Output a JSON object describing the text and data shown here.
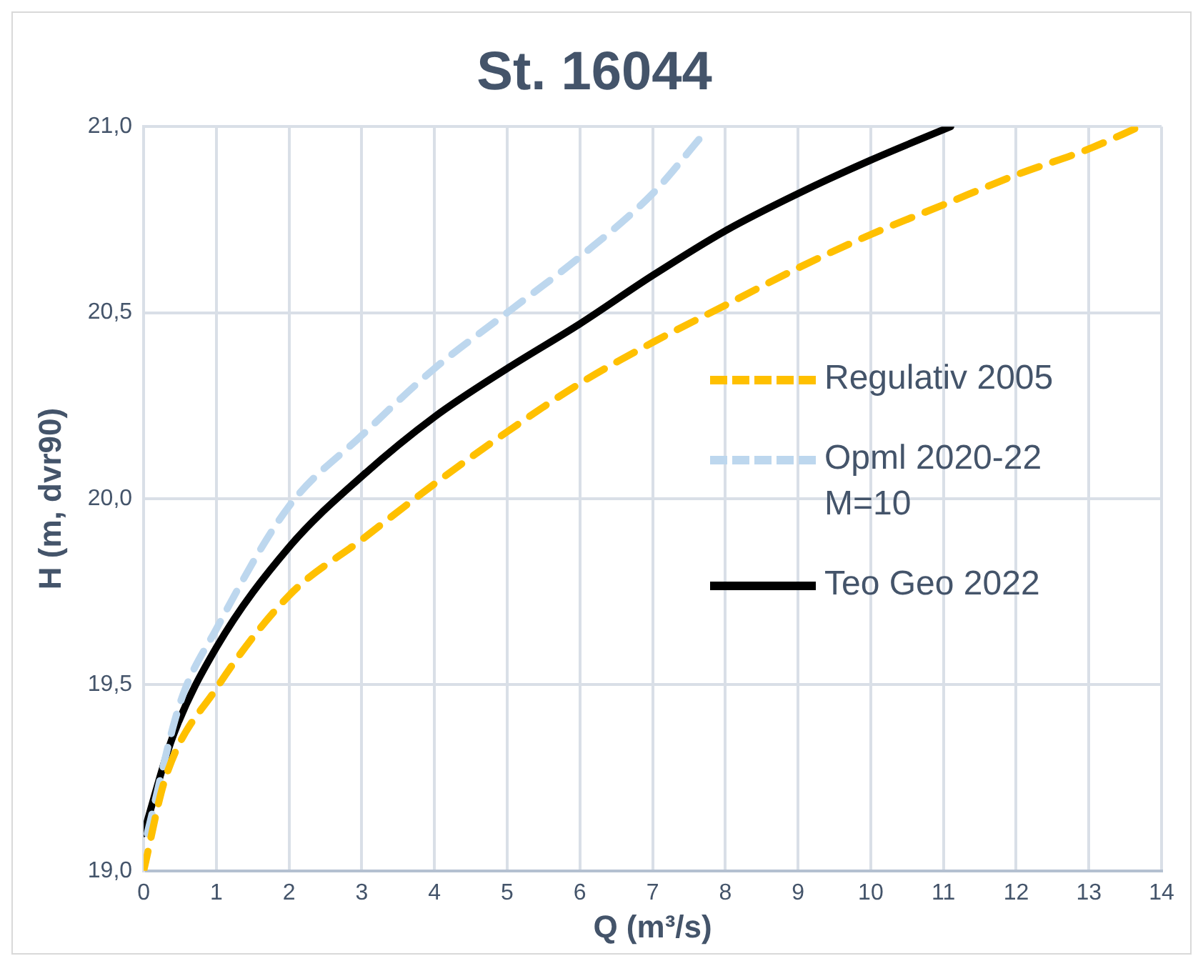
{
  "chart_data": {
    "type": "line",
    "title": "St. 16044",
    "xlabel": "Q (m³/s)",
    "ylabel": "H (m, dvr90)",
    "xlim": [
      0,
      14
    ],
    "xticks": [
      0,
      1,
      2,
      3,
      4,
      5,
      6,
      7,
      8,
      9,
      10,
      11,
      12,
      13,
      14
    ],
    "ylim": [
      19,
      21
    ],
    "yticks": [
      {
        "value": 19,
        "label": "19,0"
      },
      {
        "value": 19.5,
        "label": "19,5"
      },
      {
        "value": 20,
        "label": "20,0"
      },
      {
        "value": 20.5,
        "label": "20,5"
      },
      {
        "value": 21,
        "label": "21,0"
      }
    ],
    "grid": true,
    "legend": "right",
    "marker": "none",
    "series": [
      {
        "name": "Regulativ 2005",
        "color": "#ffc000",
        "line_style": "dashed",
        "x": [
          0,
          0.3,
          1,
          2,
          3,
          4,
          5,
          6,
          7,
          8,
          9,
          10,
          11,
          12,
          13,
          13.7
        ],
        "values": [
          19.0,
          19.25,
          19.49,
          19.74,
          19.89,
          20.04,
          20.18,
          20.31,
          20.42,
          20.52,
          20.62,
          20.71,
          20.79,
          20.87,
          20.94,
          21.0
        ]
      },
      {
        "name": "Opml 2020-22 M=10",
        "color": "#bdd7ee",
        "line_style": "dashed",
        "x": [
          0.05,
          0.5,
          1,
          2,
          3,
          4,
          5,
          6,
          7,
          7.7
        ],
        "values": [
          19.1,
          19.45,
          19.65,
          19.98,
          20.17,
          20.35,
          20.5,
          20.65,
          20.82,
          20.98
        ]
      },
      {
        "name": "Teo Geo 2022",
        "color": "#000000",
        "line_style": "solid",
        "x": [
          0,
          0.4,
          1,
          2,
          3,
          4,
          5,
          6,
          7,
          8,
          9,
          10,
          11.1
        ],
        "values": [
          19.1,
          19.36,
          19.6,
          19.87,
          20.06,
          20.22,
          20.35,
          20.47,
          20.6,
          20.72,
          20.82,
          20.91,
          21.0
        ]
      }
    ]
  }
}
